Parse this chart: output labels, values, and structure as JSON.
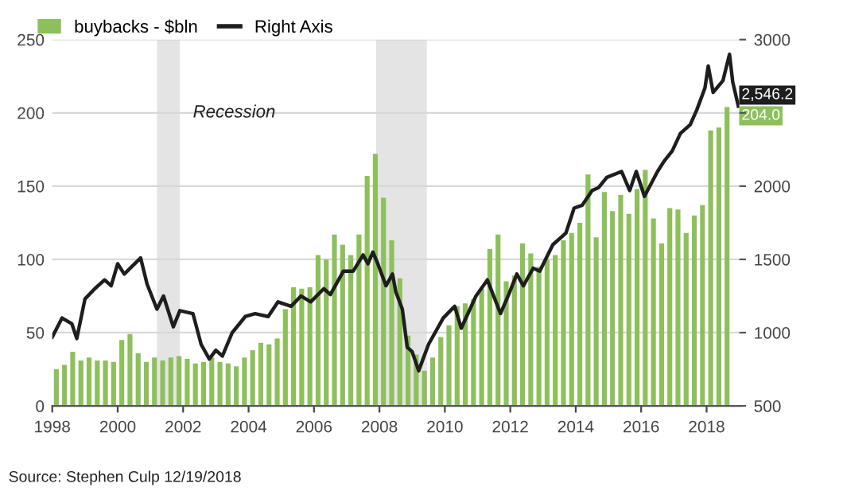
{
  "chart_data": {
    "type": "bar",
    "x": [
      1998.125,
      1998.375,
      1998.625,
      1998.875,
      1999.125,
      1999.375,
      1999.625,
      1999.875,
      2000.125,
      2000.375,
      2000.625,
      2000.875,
      2001.125,
      2001.375,
      2001.625,
      2001.875,
      2002.125,
      2002.375,
      2002.625,
      2002.875,
      2003.125,
      2003.375,
      2003.625,
      2003.875,
      2004.125,
      2004.375,
      2004.625,
      2004.875,
      2005.125,
      2005.375,
      2005.625,
      2005.875,
      2006.125,
      2006.375,
      2006.625,
      2006.875,
      2007.125,
      2007.375,
      2007.625,
      2007.875,
      2008.125,
      2008.375,
      2008.625,
      2008.875,
      2009.125,
      2009.375,
      2009.625,
      2009.875,
      2010.125,
      2010.375,
      2010.625,
      2010.875,
      2011.125,
      2011.375,
      2011.625,
      2011.875,
      2012.125,
      2012.375,
      2012.625,
      2012.875,
      2013.125,
      2013.375,
      2013.625,
      2013.875,
      2014.125,
      2014.375,
      2014.625,
      2014.875,
      2015.125,
      2015.375,
      2015.625,
      2015.875,
      2016.125,
      2016.375,
      2016.625,
      2016.875,
      2017.125,
      2017.375,
      2017.625,
      2017.875,
      2018.125,
      2018.375,
      2018.625
    ],
    "series": [
      {
        "name": "buybacks - $bln",
        "color": "#8dc05b",
        "values": [
          25,
          28,
          37,
          31,
          33,
          31,
          31,
          30,
          45,
          49,
          36,
          30,
          33,
          31,
          33,
          34,
          32,
          29,
          30,
          33,
          30,
          29,
          27,
          33,
          38,
          43,
          42,
          46,
          66,
          81,
          80,
          81,
          103,
          100,
          117,
          110,
          103,
          117,
          157,
          172,
          142,
          113,
          87,
          48,
          35,
          24,
          33,
          47,
          55,
          68,
          70,
          73,
          80,
          107,
          117,
          85,
          89,
          111,
          104,
          95,
          100,
          103,
          113,
          118,
          125,
          158,
          115,
          146,
          133,
          144,
          131,
          148,
          161,
          128,
          111,
          135,
          134,
          118,
          130,
          137,
          188,
          190,
          204.0
        ],
        "value_labels": [
          null,
          null,
          null,
          null,
          null,
          null,
          null,
          null,
          null,
          null,
          null,
          null,
          null,
          null,
          null,
          null,
          null,
          null,
          null,
          null,
          null,
          null,
          null,
          null,
          null,
          null,
          null,
          null,
          null,
          null,
          null,
          null,
          null,
          null,
          null,
          null,
          null,
          null,
          null,
          null,
          null,
          null,
          null,
          null,
          null,
          null,
          null,
          null,
          null,
          null,
          null,
          null,
          null,
          null,
          null,
          null,
          null,
          null,
          null,
          null,
          null,
          null,
          null,
          null,
          null,
          null,
          null,
          null,
          null,
          null,
          null,
          null,
          null,
          null,
          null,
          null,
          null,
          null,
          null,
          null,
          null,
          null,
          "204.0"
        ]
      },
      {
        "name": "Right Axis",
        "type": "line",
        "axis": "y2",
        "color": "#1e1e1e",
        "x": [
          1998.0,
          1998.3,
          1998.6,
          1998.75,
          1999.0,
          1999.3,
          1999.6,
          1999.8,
          2000.0,
          2000.2,
          2000.7,
          2000.9,
          2001.2,
          2001.4,
          2001.7,
          2001.9,
          2002.3,
          2002.55,
          2002.8,
          2003.0,
          2003.2,
          2003.5,
          2003.9,
          2004.2,
          2004.6,
          2004.9,
          2005.3,
          2005.6,
          2005.9,
          2006.3,
          2006.5,
          2006.9,
          2007.2,
          2007.5,
          2007.65,
          2007.8,
          2007.95,
          2008.2,
          2008.4,
          2008.5,
          2008.7,
          2008.85,
          2009.0,
          2009.2,
          2009.5,
          2009.95,
          2010.3,
          2010.5,
          2010.95,
          2011.3,
          2011.7,
          2011.95,
          2012.2,
          2012.4,
          2012.7,
          2012.9,
          2013.3,
          2013.7,
          2013.95,
          2014.2,
          2014.5,
          2014.7,
          2014.95,
          2015.4,
          2015.65,
          2015.85,
          2016.1,
          2016.5,
          2016.7,
          2016.95,
          2017.2,
          2017.5,
          2017.7,
          2017.95,
          2018.05,
          2018.2,
          2018.5,
          2018.7,
          2018.8,
          2018.97
        ],
        "values": [
          970,
          1100,
          1060,
          960,
          1230,
          1300,
          1360,
          1320,
          1470,
          1400,
          1510,
          1330,
          1160,
          1250,
          1040,
          1150,
          1130,
          920,
          820,
          880,
          840,
          1000,
          1110,
          1130,
          1110,
          1210,
          1180,
          1250,
          1210,
          1300,
          1260,
          1420,
          1420,
          1530,
          1470,
          1550,
          1470,
          1320,
          1400,
          1280,
          1160,
          900,
          870,
          740,
          920,
          1100,
          1180,
          1030,
          1250,
          1360,
          1130,
          1260,
          1400,
          1320,
          1440,
          1420,
          1600,
          1680,
          1850,
          1870,
          1970,
          1990,
          2060,
          2100,
          1970,
          2100,
          1930,
          2100,
          2170,
          2240,
          2360,
          2420,
          2520,
          2670,
          2820,
          2640,
          2720,
          2900,
          2710,
          2546.2
        ],
        "value_labels": [
          null,
          null,
          null,
          null,
          null,
          null,
          null,
          null,
          null,
          null,
          null,
          null,
          null,
          null,
          null,
          null,
          null,
          null,
          null,
          null,
          null,
          null,
          null,
          null,
          null,
          null,
          null,
          null,
          null,
          null,
          null,
          null,
          null,
          null,
          null,
          null,
          null,
          null,
          null,
          null,
          null,
          null,
          null,
          null,
          null,
          null,
          null,
          null,
          null,
          null,
          null,
          null,
          null,
          null,
          null,
          null,
          null,
          null,
          null,
          null,
          null,
          null,
          null,
          null,
          null,
          null,
          null,
          null,
          null,
          null,
          null,
          null,
          null,
          null,
          null,
          null,
          null,
          null,
          null,
          "2,546.2"
        ]
      }
    ],
    "xlim": [
      1998,
      2019.0
    ],
    "xticks": [
      1998,
      2000,
      2002,
      2004,
      2006,
      2008,
      2010,
      2012,
      2014,
      2016,
      2018
    ],
    "ylim": [
      0,
      250
    ],
    "yticks": [
      0,
      50,
      100,
      150,
      200,
      250
    ],
    "y2lim": [
      500,
      3000
    ],
    "y2ticks": [
      500,
      1000,
      1500,
      2000,
      {
        "value": 2500,
        "label": null
      },
      3000
    ],
    "bands": [
      {
        "axis": "x",
        "from": 2001.2,
        "to": 2001.9,
        "label": "Recession",
        "color": "#e4e4e4"
      },
      {
        "axis": "x",
        "from": 2007.9,
        "to": 2009.45,
        "color": "#e4e4e4"
      }
    ],
    "annotations": [
      "Source: Stephen Culp 12/19/2018"
    ],
    "grid": "y",
    "legend": "top left"
  }
}
